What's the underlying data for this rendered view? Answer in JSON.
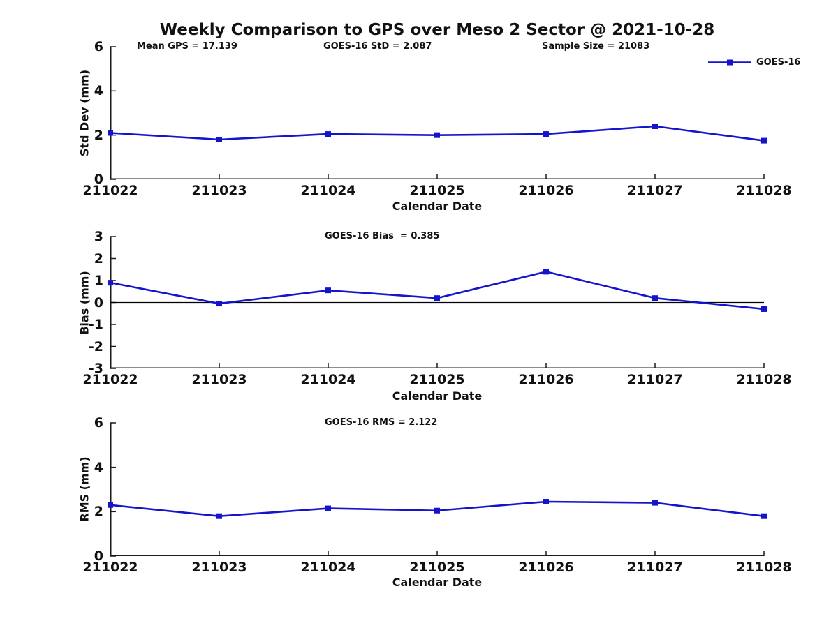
{
  "title": "Weekly Comparison to GPS over Meso 2 Sector @ 2021-10-28",
  "legend": {
    "label": "GOES-16",
    "marker": "square"
  },
  "colors": {
    "line": "#1414cc",
    "axis": "#1a1a1a",
    "text": "#111111",
    "background": "#ffffff"
  },
  "chart_data": [
    {
      "type": "line",
      "name": "std-dev",
      "ylabel": "Std Dev (mm)",
      "xlabel": "Calendar Date",
      "categories": [
        "211022",
        "211023",
        "211024",
        "211025",
        "211026",
        "211027",
        "211028"
      ],
      "series": [
        {
          "name": "GOES-16",
          "values": [
            2.1,
            1.8,
            2.05,
            2.0,
            2.05,
            2.4,
            1.75
          ]
        }
      ],
      "ylim": [
        0,
        6
      ],
      "yticks": [
        0,
        2,
        4,
        6
      ],
      "grid": false,
      "legend_position": "top-right",
      "annotations": [
        "Mean GPS = 17.139",
        "GOES-16 StD = 2.087",
        "Sample Size = 21083"
      ]
    },
    {
      "type": "line",
      "name": "bias",
      "ylabel": "Bias (mm)",
      "xlabel": "Calendar Date",
      "categories": [
        "211022",
        "211023",
        "211024",
        "211025",
        "211026",
        "211027",
        "211028"
      ],
      "series": [
        {
          "name": "GOES-16",
          "values": [
            0.9,
            -0.05,
            0.55,
            0.2,
            1.4,
            0.2,
            -0.3
          ]
        }
      ],
      "ylim": [
        -3,
        3
      ],
      "yticks": [
        -3,
        -2,
        -1,
        0,
        1,
        2,
        3
      ],
      "grid": false,
      "zero_line": true,
      "annotations": [
        "GOES-16 Bias  = 0.385"
      ]
    },
    {
      "type": "line",
      "name": "rms",
      "ylabel": "RMS (mm)",
      "xlabel": "Calendar Date",
      "categories": [
        "211022",
        "211023",
        "211024",
        "211025",
        "211026",
        "211027",
        "211028"
      ],
      "series": [
        {
          "name": "GOES-16",
          "values": [
            2.3,
            1.8,
            2.15,
            2.05,
            2.45,
            2.4,
            1.8
          ]
        }
      ],
      "ylim": [
        0,
        6
      ],
      "yticks": [
        0,
        2,
        4,
        6
      ],
      "grid": false,
      "annotations": [
        "GOES-16 RMS = 2.122"
      ]
    }
  ]
}
